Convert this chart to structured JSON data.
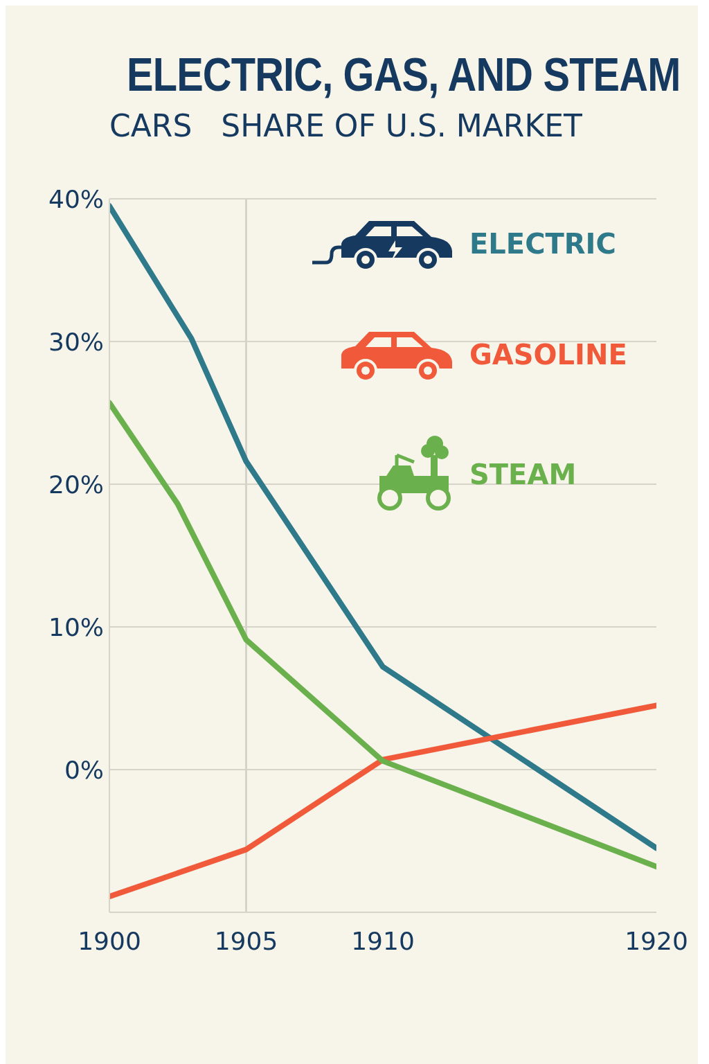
{
  "chart_data": {
    "type": "line",
    "title": "ELECTRIC, GAS, AND STEAM",
    "subtitle": "CARS   SHARE OF U.S. MARKET",
    "xlim": [
      1900,
      1920
    ],
    "xticks": [
      1900,
      1905,
      1910,
      1920
    ],
    "ylim": [
      -10,
      40
    ],
    "yticks": [
      {
        "value": 0,
        "label": "0%"
      },
      {
        "value": 10,
        "label": "10%"
      },
      {
        "value": 20,
        "label": "20%"
      },
      {
        "value": 30,
        "label": "30%"
      },
      {
        "value": 40,
        "label": "40%"
      }
    ],
    "grid": "y",
    "legend": "top right",
    "ref_lines": [
      {
        "axis": "x",
        "value": 1905,
        "color": "#d6d3c8"
      }
    ],
    "series": [
      {
        "name": "ELECTRIC",
        "color": "#2e7a8a",
        "x": [
          1900,
          1903,
          1905,
          1907.4,
          1910,
          1920
        ],
        "values": [
          39.5,
          30.2,
          21.6,
          14.7,
          7.2,
          -5.5
        ]
      },
      {
        "name": "GASOLINE",
        "color": "#f05a3a",
        "x": [
          1900,
          1905,
          1910,
          1920
        ],
        "values": [
          -8.9,
          -5.6,
          0.7,
          4.5
        ]
      },
      {
        "name": "STEAM",
        "color": "#6ab04c",
        "x": [
          1900,
          1902.5,
          1905,
          1910,
          1920
        ],
        "values": [
          25.7,
          18.6,
          9.1,
          0.6,
          -6.8
        ]
      }
    ]
  }
}
